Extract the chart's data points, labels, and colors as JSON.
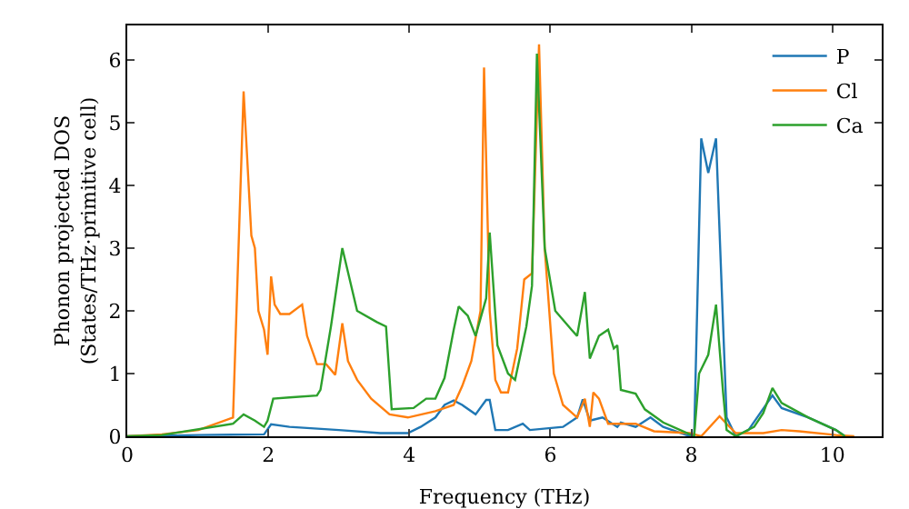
{
  "chart_data": {
    "type": "line",
    "xlabel": "Frequency (THz)",
    "ylabel": "Phonon projected DOS\n(States/THz·primitive cell)",
    "xlim": [
      0,
      10.7
    ],
    "ylim": [
      0,
      6.55
    ],
    "xticks": [
      0,
      2,
      4,
      6,
      8,
      10
    ],
    "yticks": [
      0,
      1,
      2,
      3,
      4,
      5,
      6
    ],
    "grid": false,
    "legend": "top right",
    "marker": "none",
    "line_style": "solid",
    "series": [
      {
        "name": "P",
        "color": "#1f77b4",
        "x": [
          0,
          1.01,
          1.94,
          2.04,
          2.3,
          3.0,
          3.59,
          3.98,
          4.16,
          4.37,
          4.5,
          4.63,
          4.75,
          4.94,
          5.09,
          5.14,
          5.22,
          5.4,
          5.61,
          5.71,
          6.18,
          6.38,
          6.46,
          6.56,
          6.74,
          6.95,
          7.0,
          7.21,
          7.42,
          7.6,
          7.93,
          8.04,
          8.14,
          8.24,
          8.35,
          8.5,
          8.63,
          8.81,
          9.15,
          9.28,
          9.66,
          10.05,
          10.18
        ],
        "values": [
          0,
          0.02,
          0.03,
          0.19,
          0.15,
          0.1,
          0.05,
          0.05,
          0.15,
          0.3,
          0.5,
          0.57,
          0.5,
          0.35,
          0.58,
          0.58,
          0.1,
          0.1,
          0.2,
          0.1,
          0.15,
          0.3,
          0.59,
          0.25,
          0.3,
          0.15,
          0.22,
          0.15,
          0.3,
          0.15,
          0.02,
          0,
          4.75,
          4.2,
          4.75,
          0.3,
          0,
          0.1,
          0.65,
          0.45,
          0.3,
          0.1,
          0
        ]
      },
      {
        "name": "Cl",
        "color": "#ff7f0e",
        "x": [
          0,
          0.49,
          1.01,
          1.5,
          1.65,
          1.76,
          1.81,
          1.86,
          1.94,
          1.99,
          2.04,
          2.09,
          2.17,
          2.3,
          2.48,
          2.55,
          2.69,
          2.82,
          2.95,
          3.05,
          3.13,
          3.26,
          3.46,
          3.72,
          3.98,
          4.37,
          4.63,
          4.75,
          4.88,
          5.01,
          5.06,
          5.14,
          5.22,
          5.3,
          5.4,
          5.53,
          5.63,
          5.74,
          5.84,
          5.92,
          6.05,
          6.18,
          6.38,
          6.49,
          6.56,
          6.61,
          6.69,
          6.82,
          7.21,
          7.47,
          7.98,
          8.14,
          8.4,
          8.5,
          8.63,
          9.02,
          9.28,
          9.53,
          10.05,
          10.31
        ],
        "values": [
          0,
          0.03,
          0.1,
          0.3,
          5.5,
          3.2,
          3.0,
          2.0,
          1.7,
          1.3,
          2.55,
          2.1,
          1.95,
          1.95,
          2.1,
          1.6,
          1.15,
          1.15,
          0.98,
          1.8,
          1.2,
          0.9,
          0.6,
          0.35,
          0.3,
          0.4,
          0.5,
          0.8,
          1.2,
          2.0,
          5.88,
          2.0,
          0.9,
          0.7,
          0.7,
          1.4,
          2.5,
          2.6,
          6.25,
          3.0,
          1.0,
          0.5,
          0.3,
          0.6,
          0.15,
          0.7,
          0.6,
          0.2,
          0.2,
          0.08,
          0.05,
          0,
          0.32,
          0.2,
          0.05,
          0.05,
          0.1,
          0.08,
          0.02,
          0
        ]
      },
      {
        "name": "Ca",
        "color": "#2ca02c",
        "x": [
          0,
          0.49,
          1.5,
          1.65,
          1.81,
          1.94,
          1.99,
          2.07,
          2.3,
          2.69,
          2.74,
          2.89,
          3.05,
          3.26,
          3.54,
          3.67,
          3.75,
          4.06,
          4.24,
          4.37,
          4.5,
          4.63,
          4.7,
          4.83,
          4.94,
          5.09,
          5.14,
          5.25,
          5.4,
          5.5,
          5.66,
          5.74,
          5.81,
          5.92,
          6.07,
          6.3,
          6.38,
          6.49,
          6.56,
          6.69,
          6.82,
          6.9,
          6.95,
          7.0,
          7.21,
          7.34,
          7.6,
          7.98,
          8.04,
          8.11,
          8.24,
          8.35,
          8.45,
          8.5,
          8.63,
          8.89,
          9.02,
          9.15,
          9.28,
          9.66,
          10.05,
          10.18
        ],
        "values": [
          0,
          0.02,
          0.2,
          0.35,
          0.25,
          0.15,
          0.25,
          0.6,
          0.62,
          0.65,
          0.74,
          1.76,
          3.0,
          2.0,
          1.82,
          1.75,
          0.43,
          0.45,
          0.6,
          0.6,
          0.93,
          1.7,
          2.07,
          1.92,
          1.6,
          2.2,
          3.25,
          1.45,
          1.0,
          0.9,
          1.75,
          2.4,
          6.1,
          3.0,
          2.0,
          1.7,
          1.6,
          2.3,
          1.24,
          1.6,
          1.7,
          1.4,
          1.45,
          0.74,
          0.68,
          0.43,
          0.22,
          0.03,
          0,
          1.0,
          1.3,
          2.1,
          0.7,
          0.1,
          0,
          0.15,
          0.37,
          0.77,
          0.53,
          0.3,
          0.1,
          0
        ]
      }
    ]
  }
}
